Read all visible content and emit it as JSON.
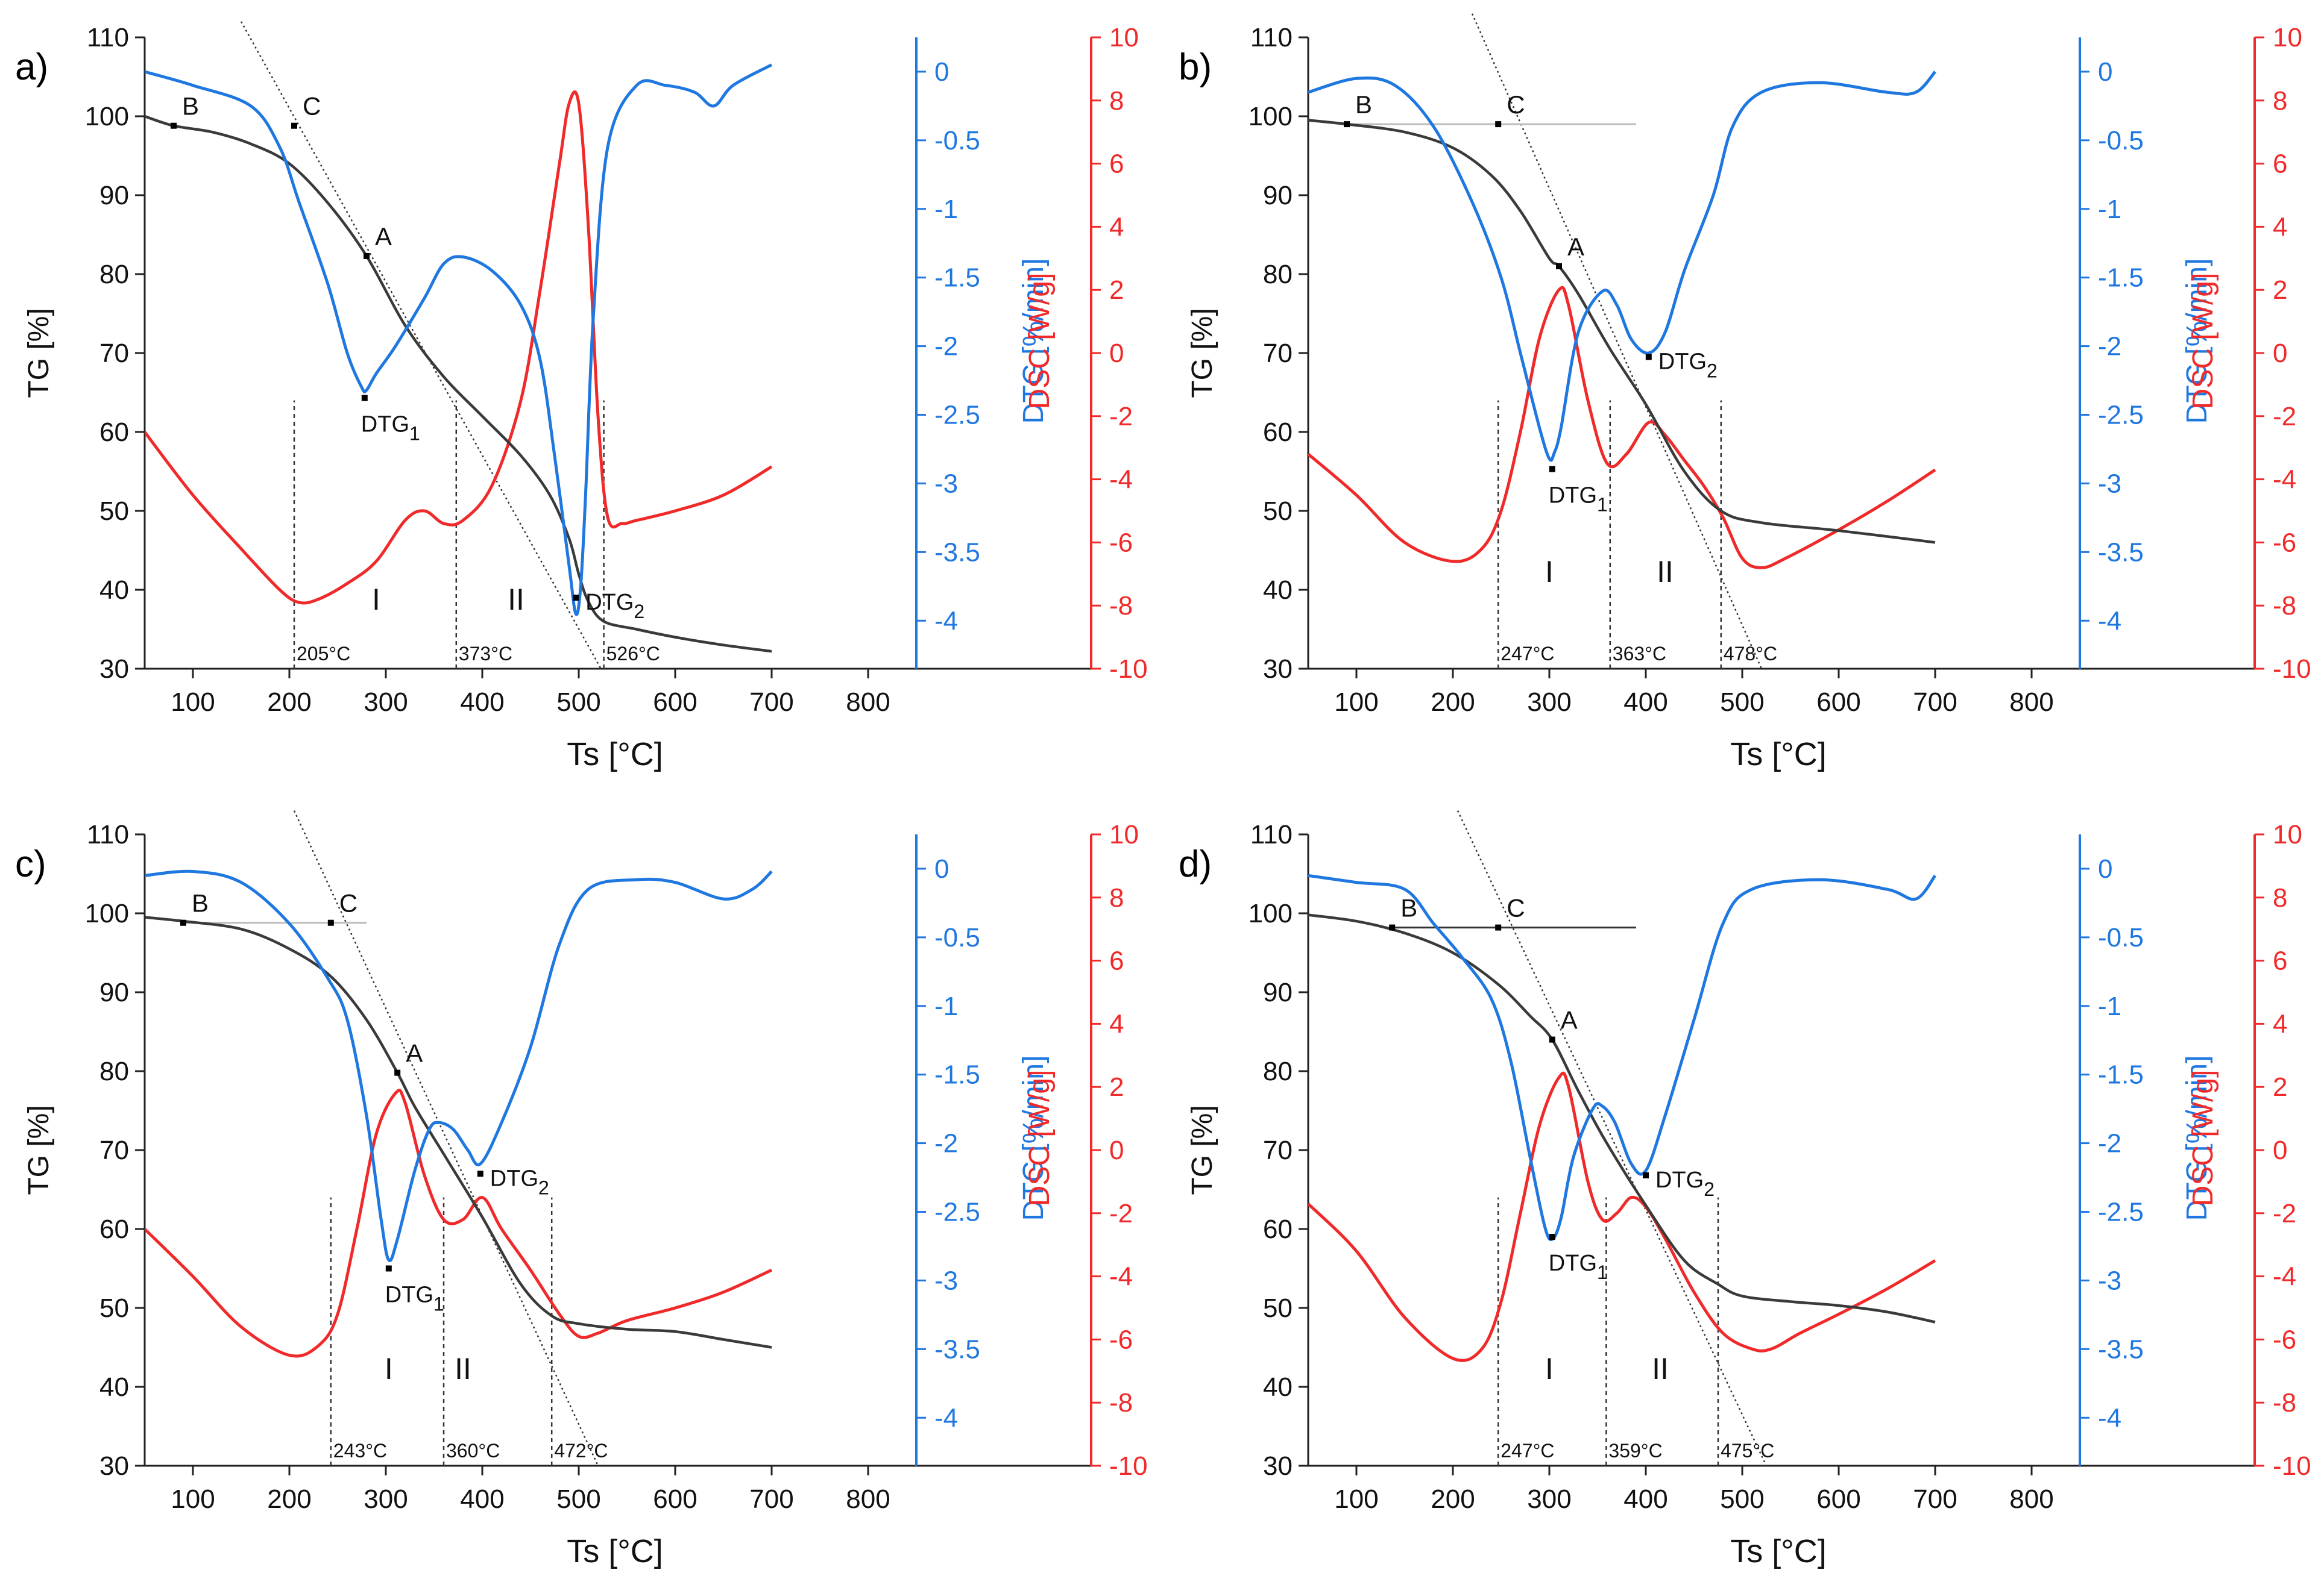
{
  "figure": {
    "colors": {
      "tg": "#3a3a3a",
      "dtg": "#1f77e0",
      "dsc": "#f02a2a",
      "axis": "#222222",
      "guide": "#333333"
    },
    "x_ticks": [
      "100",
      "200",
      "300",
      "400",
      "500",
      "600",
      "700",
      "800"
    ],
    "tg_ticks": [
      "30",
      "40",
      "50",
      "60",
      "70",
      "80",
      "90",
      "100",
      "110"
    ],
    "dtg_ticks": [
      "0",
      "-0.5",
      "-1",
      "-1.5",
      "-2",
      "-2.5",
      "-3",
      "-3.5",
      "-4"
    ],
    "dsc_ticks": [
      "10",
      "8",
      "6",
      "4",
      "2",
      "0",
      "-2",
      "-4",
      "-6",
      "-8",
      "-10"
    ],
    "axis_labels": {
      "x": "Ts [°C]",
      "tg": "TG [%]",
      "dtg": "DTG [%/min]",
      "dsc": "DSC [W/g]"
    }
  },
  "chart_data": [
    {
      "type": "line",
      "panel_label": "a)",
      "xlabel": "Ts [°C]",
      "xlim": [
        50,
        850
      ],
      "ylabel": "TG [%]",
      "ylim": [
        30,
        110
      ],
      "y2label": "DTG [%/min]",
      "y2lim": [
        -4.35,
        0.25
      ],
      "y3label": "DSC [W/g]",
      "y3lim": [
        -10,
        10
      ],
      "series": [
        {
          "name": "TG",
          "axis": "tg",
          "x": [
            50,
            80,
            120,
            160,
            200,
            240,
            280,
            320,
            360,
            400,
            440,
            470,
            490,
            500,
            510,
            526,
            560,
            600,
            650,
            700
          ],
          "values": [
            100,
            98.8,
            98,
            96.5,
            94,
            89,
            82.3,
            73.5,
            67,
            62,
            57,
            52,
            46.5,
            42,
            38.5,
            36,
            35,
            34,
            33,
            32.2
          ]
        },
        {
          "name": "DTG",
          "axis": "dtg",
          "x": [
            50,
            100,
            160,
            190,
            210,
            240,
            260,
            275,
            280,
            290,
            310,
            340,
            360,
            380,
            410,
            440,
            460,
            475,
            490,
            497,
            502,
            507,
            515,
            530,
            560,
            590,
            620,
            640,
            660,
            700
          ],
          "values": [
            0,
            -0.1,
            -0.25,
            -0.55,
            -0.95,
            -1.55,
            -2.05,
            -2.3,
            -2.32,
            -2.2,
            -2,
            -1.65,
            -1.4,
            -1.35,
            -1.45,
            -1.7,
            -2.1,
            -2.8,
            -3.6,
            -3.95,
            -3.75,
            -3.1,
            -1.8,
            -0.55,
            -0.1,
            -0.1,
            -0.15,
            -0.25,
            -0.1,
            0.05
          ]
        },
        {
          "name": "DSC",
          "axis": "dsc",
          "x": [
            50,
            100,
            150,
            190,
            210,
            230,
            260,
            290,
            320,
            340,
            360,
            380,
            410,
            440,
            460,
            480,
            490,
            500,
            510,
            520,
            530,
            545,
            560,
            600,
            650,
            700
          ],
          "values": [
            -2.5,
            -4.5,
            -6.2,
            -7.5,
            -7.9,
            -7.8,
            -7.3,
            -6.6,
            -5.3,
            -5,
            -5.4,
            -5.3,
            -4.2,
            -1.5,
            2,
            6,
            7.9,
            7.9,
            4,
            -2,
            -5.2,
            -5.4,
            -5.3,
            -5,
            -4.5,
            -3.6
          ]
        }
      ],
      "markers": [
        {
          "label": "B",
          "x": 80,
          "y": 98.8
        },
        {
          "label": "C",
          "x": 205,
          "y": 98.8
        },
        {
          "label": "A",
          "x": 280,
          "y": 82.3
        }
      ],
      "dtg1": {
        "label": "DTG",
        "sub": "1",
        "x": 278,
        "y": 64.3
      },
      "dtg2": {
        "label": "DTG",
        "sub": "2",
        "x": 497,
        "y": 39
      },
      "tangent": [
        [
          150,
          112
        ],
        [
          523,
          30
        ]
      ],
      "baseline": null,
      "temperatures": [
        {
          "label": "205°C",
          "x": 205
        },
        {
          "label": "373°C",
          "x": 373
        },
        {
          "label": "526°C",
          "x": 526
        }
      ],
      "stages": [
        {
          "label": "I",
          "x": 290
        },
        {
          "label": "II",
          "x": 435
        }
      ],
      "stage_y": 37.5
    },
    {
      "type": "line",
      "panel_label": "b)",
      "xlabel": "Ts [°C]",
      "xlim": [
        50,
        850
      ],
      "ylabel": "TG [%]",
      "ylim": [
        30,
        110
      ],
      "y2label": "DTG [%/min]",
      "y2lim": [
        -4.35,
        0.25
      ],
      "y3label": "DSC [W/g]",
      "y3lim": [
        -10,
        10
      ],
      "series": [
        {
          "name": "TG",
          "axis": "tg",
          "x": [
            50,
            90,
            150,
            200,
            240,
            270,
            300,
            310,
            330,
            363,
            400,
            440,
            478,
            520,
            600,
            700
          ],
          "values": [
            99.5,
            99,
            98,
            96,
            92.5,
            88,
            82,
            81,
            77.5,
            70.5,
            63.5,
            55,
            50,
            48.5,
            47.5,
            46
          ]
        },
        {
          "name": "DTG",
          "axis": "dtg",
          "x": [
            50,
            100,
            140,
            180,
            220,
            250,
            270,
            290,
            300,
            305,
            312,
            330,
            355,
            370,
            385,
            403,
            420,
            440,
            470,
            490,
            520,
            580,
            650,
            680,
            700
          ],
          "values": [
            -0.15,
            -0.05,
            -0.1,
            -0.4,
            -0.95,
            -1.5,
            -2.05,
            -2.6,
            -2.82,
            -2.78,
            -2.6,
            -1.9,
            -1.6,
            -1.7,
            -1.95,
            -2.05,
            -1.9,
            -1.45,
            -0.9,
            -0.4,
            -0.15,
            -0.08,
            -0.15,
            -0.15,
            0
          ]
        },
        {
          "name": "DSC",
          "axis": "dsc",
          "x": [
            50,
            100,
            150,
            200,
            230,
            250,
            270,
            290,
            310,
            320,
            340,
            360,
            380,
            403,
            420,
            440,
            460,
            480,
            500,
            520,
            545,
            600,
            650,
            700
          ],
          "values": [
            -3.2,
            -4.5,
            -6,
            -6.6,
            -6.2,
            -5,
            -2.5,
            0.5,
            2,
            1.5,
            -1.5,
            -3.5,
            -3.2,
            -2.2,
            -2.6,
            -3.4,
            -4.2,
            -5.2,
            -6.5,
            -6.8,
            -6.5,
            -5.6,
            -4.7,
            -3.7
          ]
        }
      ],
      "markers": [
        {
          "label": "B",
          "x": 90,
          "y": 99
        },
        {
          "label": "C",
          "x": 247,
          "y": 99
        },
        {
          "label": "A",
          "x": 310,
          "y": 81
        }
      ],
      "dtg1": {
        "label": "DTG",
        "sub": "1",
        "x": 303,
        "y": 55.3
      },
      "dtg2": {
        "label": "DTG",
        "sub": "2",
        "x": 403,
        "y": 69.5
      },
      "tangent": [
        [
          220,
          113
        ],
        [
          520,
          30
        ]
      ],
      "baseline": [
        [
          90,
          99
        ],
        [
          390,
          99
        ]
      ],
      "temperatures": [
        {
          "label": "247°C",
          "x": 247
        },
        {
          "label": "363°C",
          "x": 363
        },
        {
          "label": "478°C",
          "x": 478
        }
      ],
      "stages": [
        {
          "label": "I",
          "x": 300
        },
        {
          "label": "II",
          "x": 420
        }
      ],
      "stage_y": 41
    },
    {
      "type": "line",
      "panel_label": "c)",
      "xlabel": "Ts [°C]",
      "xlim": [
        50,
        850
      ],
      "ylabel": "TG [%]",
      "ylim": [
        30,
        110
      ],
      "y2label": "DTG [%/min]",
      "y2lim": [
        -4.35,
        0.25
      ],
      "y3label": "DSC [W/g]",
      "y3lim": [
        -10,
        10
      ],
      "series": [
        {
          "name": "TG",
          "axis": "tg",
          "x": [
            50,
            90,
            150,
            200,
            243,
            280,
            312,
            330,
            360,
            400,
            440,
            472,
            500,
            550,
            600,
            650,
            700
          ],
          "values": [
            99.5,
            99,
            98,
            95.5,
            92,
            86.5,
            79.8,
            75.5,
            69.5,
            61.5,
            53,
            49,
            48,
            47.3,
            47,
            46,
            45
          ]
        },
        {
          "name": "DTG",
          "axis": "dtg",
          "x": [
            50,
            100,
            150,
            200,
            240,
            260,
            280,
            295,
            303,
            312,
            330,
            345,
            355,
            370,
            385,
            398,
            420,
            450,
            480,
            510,
            560,
            600,
            650,
            680,
            700
          ],
          "values": [
            -0.05,
            -0.02,
            -0.1,
            -0.4,
            -0.8,
            -1.1,
            -1.8,
            -2.55,
            -2.85,
            -2.7,
            -2.2,
            -1.9,
            -1.85,
            -1.9,
            -2.05,
            -2.15,
            -1.85,
            -1.3,
            -0.55,
            -0.15,
            -0.08,
            -0.1,
            -0.22,
            -0.15,
            -0.02
          ]
        },
        {
          "name": "DSC",
          "axis": "dsc",
          "x": [
            50,
            100,
            150,
            200,
            230,
            250,
            270,
            290,
            310,
            320,
            340,
            360,
            380,
            400,
            420,
            450,
            480,
            500,
            520,
            550,
            600,
            650,
            700
          ],
          "values": [
            -2.5,
            -4,
            -5.6,
            -6.5,
            -6.2,
            -5.2,
            -2.5,
            0.5,
            1.8,
            1.5,
            -0.8,
            -2.2,
            -2.2,
            -1.5,
            -2.5,
            -3.8,
            -5.2,
            -5.9,
            -5.8,
            -5.4,
            -5,
            -4.5,
            -3.8
          ]
        }
      ],
      "markers": [
        {
          "label": "B",
          "x": 90,
          "y": 98.8
        },
        {
          "label": "C",
          "x": 243,
          "y": 98.8
        },
        {
          "label": "A",
          "x": 312,
          "y": 79.8
        }
      ],
      "dtg1": {
        "label": "DTG",
        "sub": "1",
        "x": 303,
        "y": 55
      },
      "dtg2": {
        "label": "DTG",
        "sub": "2",
        "x": 398,
        "y": 67
      },
      "tangent": [
        [
          205,
          113
        ],
        [
          520,
          30
        ]
      ],
      "baseline": [
        [
          90,
          98.8
        ],
        [
          280,
          98.8
        ]
      ],
      "temperatures": [
        {
          "label": "243°C",
          "x": 243
        },
        {
          "label": "360°C",
          "x": 360
        },
        {
          "label": "472°C",
          "x": 472
        }
      ],
      "stages": [
        {
          "label": "I",
          "x": 303
        },
        {
          "label": "II",
          "x": 380
        }
      ],
      "stage_y": 41
    },
    {
      "type": "line",
      "panel_label": "d)",
      "xlabel": "Ts [°C]",
      "xlim": [
        50,
        850
      ],
      "ylabel": "TG [%]",
      "ylim": [
        30,
        110
      ],
      "y2label": "DTG [%/min]",
      "y2lim": [
        -4.35,
        0.25
      ],
      "y3label": "DSC [W/g]",
      "y3lim": [
        -10,
        10
      ],
      "series": [
        {
          "name": "TG",
          "axis": "tg",
          "x": [
            50,
            100,
            150,
            200,
            247,
            280,
            303,
            330,
            359,
            400,
            440,
            475,
            500,
            550,
            600,
            650,
            700
          ],
          "values": [
            99.8,
            99,
            97.5,
            95,
            91,
            87,
            84,
            77.5,
            71,
            63,
            56,
            53,
            51.5,
            50.8,
            50.3,
            49.5,
            48.2
          ]
        },
        {
          "name": "DTG",
          "axis": "dtg",
          "x": [
            50,
            100,
            150,
            180,
            210,
            240,
            260,
            280,
            295,
            303,
            312,
            325,
            345,
            355,
            368,
            385,
            400,
            420,
            450,
            480,
            510,
            580,
            650,
            680,
            700
          ],
          "values": [
            -0.05,
            -0.1,
            -0.15,
            -0.4,
            -0.65,
            -0.95,
            -1.4,
            -2.1,
            -2.6,
            -2.7,
            -2.55,
            -2.1,
            -1.75,
            -1.73,
            -1.85,
            -2.15,
            -2.2,
            -1.8,
            -1.1,
            -0.4,
            -0.15,
            -0.08,
            -0.15,
            -0.22,
            -0.05
          ]
        },
        {
          "name": "DSC",
          "axis": "dsc",
          "x": [
            50,
            100,
            150,
            200,
            230,
            250,
            270,
            290,
            310,
            320,
            340,
            355,
            370,
            385,
            400,
            420,
            450,
            480,
            510,
            530,
            560,
            600,
            650,
            700
          ],
          "values": [
            -1.7,
            -3.2,
            -5.3,
            -6.6,
            -6.3,
            -4.8,
            -2,
            0.8,
            2.3,
            2,
            -1,
            -2.2,
            -2,
            -1.5,
            -1.8,
            -2.8,
            -4.5,
            -5.8,
            -6.3,
            -6.3,
            -5.8,
            -5.2,
            -4.4,
            -3.5
          ]
        }
      ],
      "markers": [
        {
          "label": "B",
          "x": 137,
          "y": 98.2
        },
        {
          "label": "C",
          "x": 247,
          "y": 98.2
        },
        {
          "label": "A",
          "x": 303,
          "y": 84
        }
      ],
      "dtg1": {
        "label": "DTG",
        "sub": "1",
        "x": 303,
        "y": 59
      },
      "dtg2": {
        "label": "DTG",
        "sub": "2",
        "x": 400,
        "y": 66.8
      },
      "tangent": [
        [
          205,
          113
        ],
        [
          525,
          30
        ]
      ],
      "baseline": [
        [
          137,
          98.2
        ],
        [
          390,
          98.2
        ]
      ],
      "temperatures": [
        {
          "label": "247°C",
          "x": 247
        },
        {
          "label": "359°C",
          "x": 359
        },
        {
          "label": "475°C",
          "x": 475
        }
      ],
      "stages": [
        {
          "label": "I",
          "x": 300
        },
        {
          "label": "II",
          "x": 415
        }
      ],
      "stage_y": 41
    }
  ]
}
